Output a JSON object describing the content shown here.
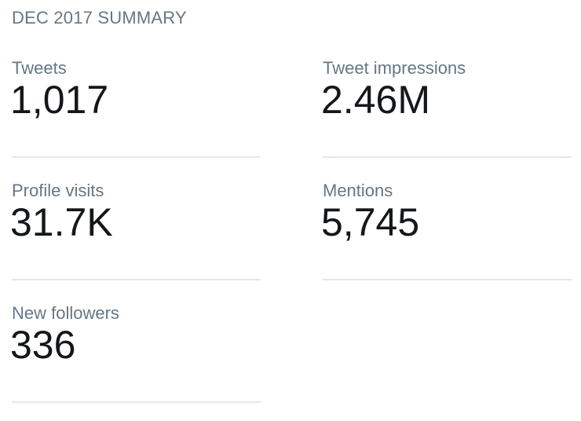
{
  "summary": {
    "title": "DEC 2017 SUMMARY",
    "stats": [
      {
        "label": "Tweets",
        "value": "1,017"
      },
      {
        "label": "Tweet impressions",
        "value": "2.46M"
      },
      {
        "label": "Profile visits",
        "value": "31.7K"
      },
      {
        "label": "Mentions",
        "value": "5,745"
      },
      {
        "label": "New followers",
        "value": "336"
      }
    ]
  },
  "colors": {
    "label": "#657786",
    "value": "#14171a",
    "divider": "#e1e8ed"
  }
}
